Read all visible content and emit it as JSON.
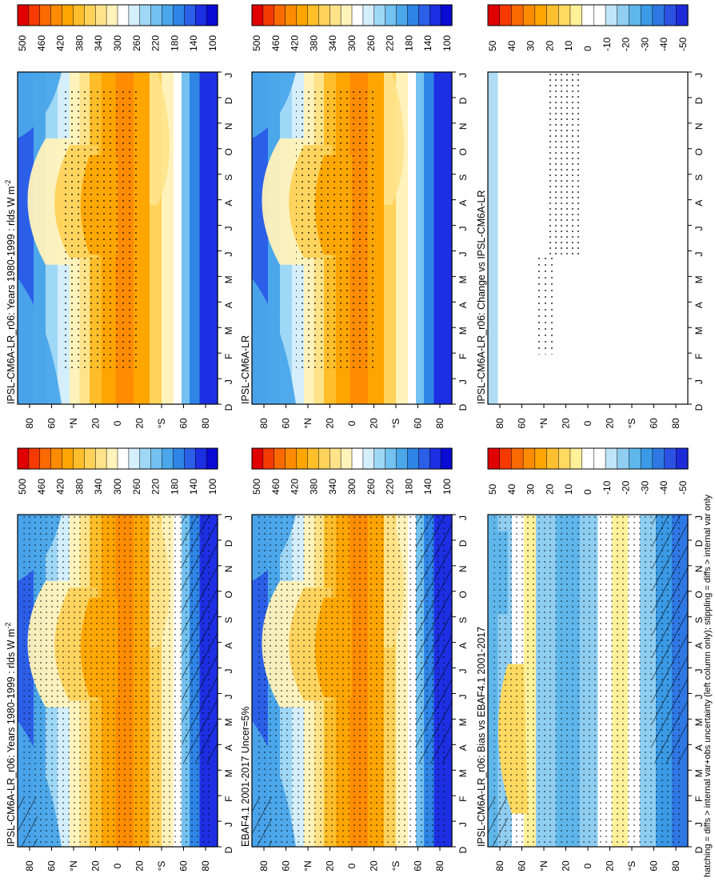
{
  "footnote": "hatching = diffs > internal var+obs uncertainty (left column only); stippling = diffs > internal var only",
  "colors": {
    "abs_scale": [
      "#e00000",
      "#f43a00",
      "#fb6a00",
      "#ff8c00",
      "#ffa500",
      "#ffbe2a",
      "#ffd25a",
      "#ffe38a",
      "#fff2bb",
      "#ffffff",
      "#d4eefc",
      "#9fd8f6",
      "#72c1f0",
      "#4ba7ea",
      "#2f85e6",
      "#2c5fe8",
      "#1d2fe3",
      "#0a0ad4"
    ],
    "diff_scale": [
      "#e00000",
      "#f43a00",
      "#fb6a00",
      "#ff8c00",
      "#ffa500",
      "#ffc030",
      "#ffd960",
      "#fff09a",
      "#ffffff",
      "#ffffff",
      "#bfe4f7",
      "#8fcdf1",
      "#5fb6eb",
      "#3a9ae6",
      "#2f78e4",
      "#2c52e3",
      "#1d2bd9"
    ]
  },
  "chart_data": [
    {
      "type": "heatmap",
      "title": "IPSL-CM6A-LR_r06: Years 1980-1999 : rlds W m",
      "title_sup": "-2",
      "x": [
        "D",
        "J",
        "F",
        "M",
        "A",
        "M",
        "J",
        "J",
        "A",
        "S",
        "O",
        "N",
        "D",
        "J"
      ],
      "y_ticks": [
        "80",
        "60",
        "°N",
        "20",
        "0",
        "20",
        "°S",
        "60",
        "80"
      ],
      "colorbar_labels": [
        "500",
        "460",
        "420",
        "380",
        "340",
        "300",
        "260",
        "220",
        "180",
        "140",
        "100"
      ],
      "ylim": [
        -90,
        90
      ],
      "hatching": true,
      "stippling": "dense"
    },
    {
      "type": "heatmap",
      "title": "IPSL-CM6A-LR_r06: Years 1980-1999 : rlds W m",
      "title_sup": "-2",
      "x": [
        "D",
        "J",
        "F",
        "M",
        "A",
        "M",
        "J",
        "J",
        "A",
        "S",
        "O",
        "N",
        "D",
        "J"
      ],
      "y_ticks": [
        "80",
        "60",
        "°N",
        "20",
        "0",
        "20",
        "°S",
        "60",
        "80"
      ],
      "colorbar_labels": [
        "500",
        "460",
        "420",
        "380",
        "340",
        "300",
        "260",
        "220",
        "180",
        "140",
        "100"
      ],
      "ylim": [
        -90,
        90
      ],
      "hatching": false,
      "stippling": "sparse"
    },
    {
      "type": "heatmap",
      "title": "EBAF4.1 2001-2017 Uncer=5%",
      "title_sup": "",
      "x": [
        "D",
        "J",
        "F",
        "M",
        "A",
        "M",
        "J",
        "J",
        "A",
        "S",
        "O",
        "N",
        "D",
        "J"
      ],
      "y_ticks": [
        "80",
        "60",
        "°N",
        "20",
        "0",
        "20",
        "°S",
        "60",
        "80"
      ],
      "colorbar_labels": [
        "500",
        "460",
        "420",
        "380",
        "340",
        "300",
        "260",
        "220",
        "180",
        "140",
        "100"
      ],
      "ylim": [
        -90,
        90
      ],
      "hatching": true,
      "stippling": "dense"
    },
    {
      "type": "heatmap",
      "title": "IPSL-CM6A-LR",
      "title_sup": "",
      "x": [
        "D",
        "J",
        "F",
        "M",
        "A",
        "M",
        "J",
        "J",
        "A",
        "S",
        "O",
        "N",
        "D",
        "J"
      ],
      "y_ticks": [
        "80",
        "60",
        "°N",
        "20",
        "0",
        "20",
        "°S",
        "60",
        "80"
      ],
      "colorbar_labels": [
        "500",
        "460",
        "420",
        "380",
        "340",
        "300",
        "260",
        "220",
        "180",
        "140",
        "100"
      ],
      "ylim": [
        -90,
        90
      ],
      "hatching": false,
      "stippling": "sparse"
    },
    {
      "type": "heatmap",
      "title": "IPSL-CM6A-LR_r06: Bias vs EBAF4.1 2001-2017",
      "title_sup": "",
      "x": [
        "D",
        "J",
        "F",
        "M",
        "A",
        "M",
        "J",
        "J",
        "A",
        "S",
        "O",
        "N",
        "D",
        "J"
      ],
      "y_ticks": [
        "80",
        "60",
        "°N",
        "20",
        "0",
        "20",
        "°S",
        "60",
        "80"
      ],
      "colorbar_labels": [
        "50",
        "40",
        "30",
        "20",
        "10",
        "0",
        "-10",
        "-20",
        "-30",
        "-40",
        "-50"
      ],
      "ylim": [
        -90,
        90
      ],
      "hatching": true,
      "stippling": "dense"
    },
    {
      "type": "heatmap",
      "title": "IPSL-CM6A-LR_r06: Change vs IPSL-CM6A-LR",
      "title_sup": "",
      "x": [
        "D",
        "J",
        "F",
        "M",
        "A",
        "M",
        "J",
        "J",
        "A",
        "S",
        "O",
        "N",
        "D",
        "J"
      ],
      "y_ticks": [
        "80",
        "60",
        "°N",
        "20",
        "0",
        "20",
        "°S",
        "60",
        "80"
      ],
      "colorbar_labels": [
        "50",
        "40",
        "30",
        "20",
        "10",
        "0",
        "-10",
        "-20",
        "-30",
        "-40",
        "-50"
      ],
      "ylim": [
        -90,
        90
      ],
      "hatching": false,
      "stippling": "equatorial"
    }
  ]
}
